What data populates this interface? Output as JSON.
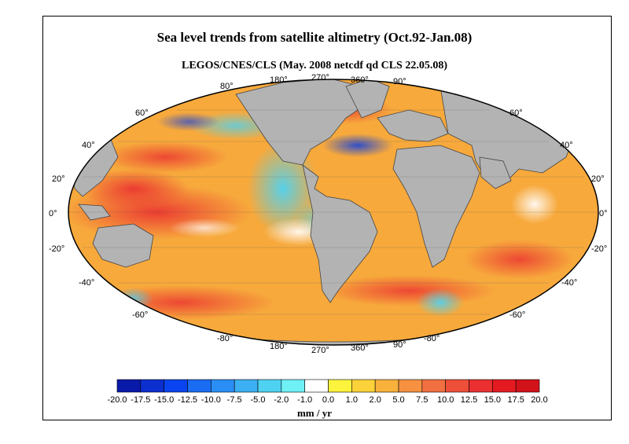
{
  "title": "Sea level trends from satellite altimetry (Oct.92-Jan.08)",
  "subtitle": "LEGOS/CNES/CLS  (May. 2008 netcdf qd CLS 22.05.08)",
  "colorbar": {
    "units": "mm / yr",
    "tick_labels": [
      "-20.0",
      "-17.5",
      "-15.0",
      "-12.5",
      "-10.0",
      "-7.5",
      "-5.0",
      "-2.0",
      "-1.0",
      "0.0",
      "1.0",
      "2.0",
      "5.0",
      "7.5",
      "10.0",
      "12.5",
      "15.0",
      "17.5",
      "20.0"
    ],
    "colors": [
      "#0a1aa8",
      "#0c2fd0",
      "#0a44f0",
      "#1a6cf2",
      "#2a8ef4",
      "#3cb0f2",
      "#4fd2f2",
      "#6ff0f5",
      "#ffffff",
      "#fbf33c",
      "#fcd23a",
      "#f8b13b",
      "#f59141",
      "#f17041",
      "#ee4f39",
      "#ea3030",
      "#e31b21",
      "#d2121a"
    ]
  },
  "map": {
    "top_lon_labels": [
      "80°",
      "180°",
      "270°",
      "360°",
      "90°"
    ],
    "bottom_lon_labels": [
      "-80°",
      "180°",
      "270°",
      "360°",
      "90°",
      "-80°"
    ],
    "lat_labels_left": [
      "60°",
      "40°",
      "20°",
      "0°",
      "-20°",
      "-40°",
      "-60°"
    ],
    "lat_labels_right": [
      "60°",
      "40°",
      "20°",
      "0°",
      "-20°",
      "-40°",
      "-60°"
    ],
    "ocean_base_color": "#f7a93c",
    "land_color": "#b3b3b3"
  }
}
